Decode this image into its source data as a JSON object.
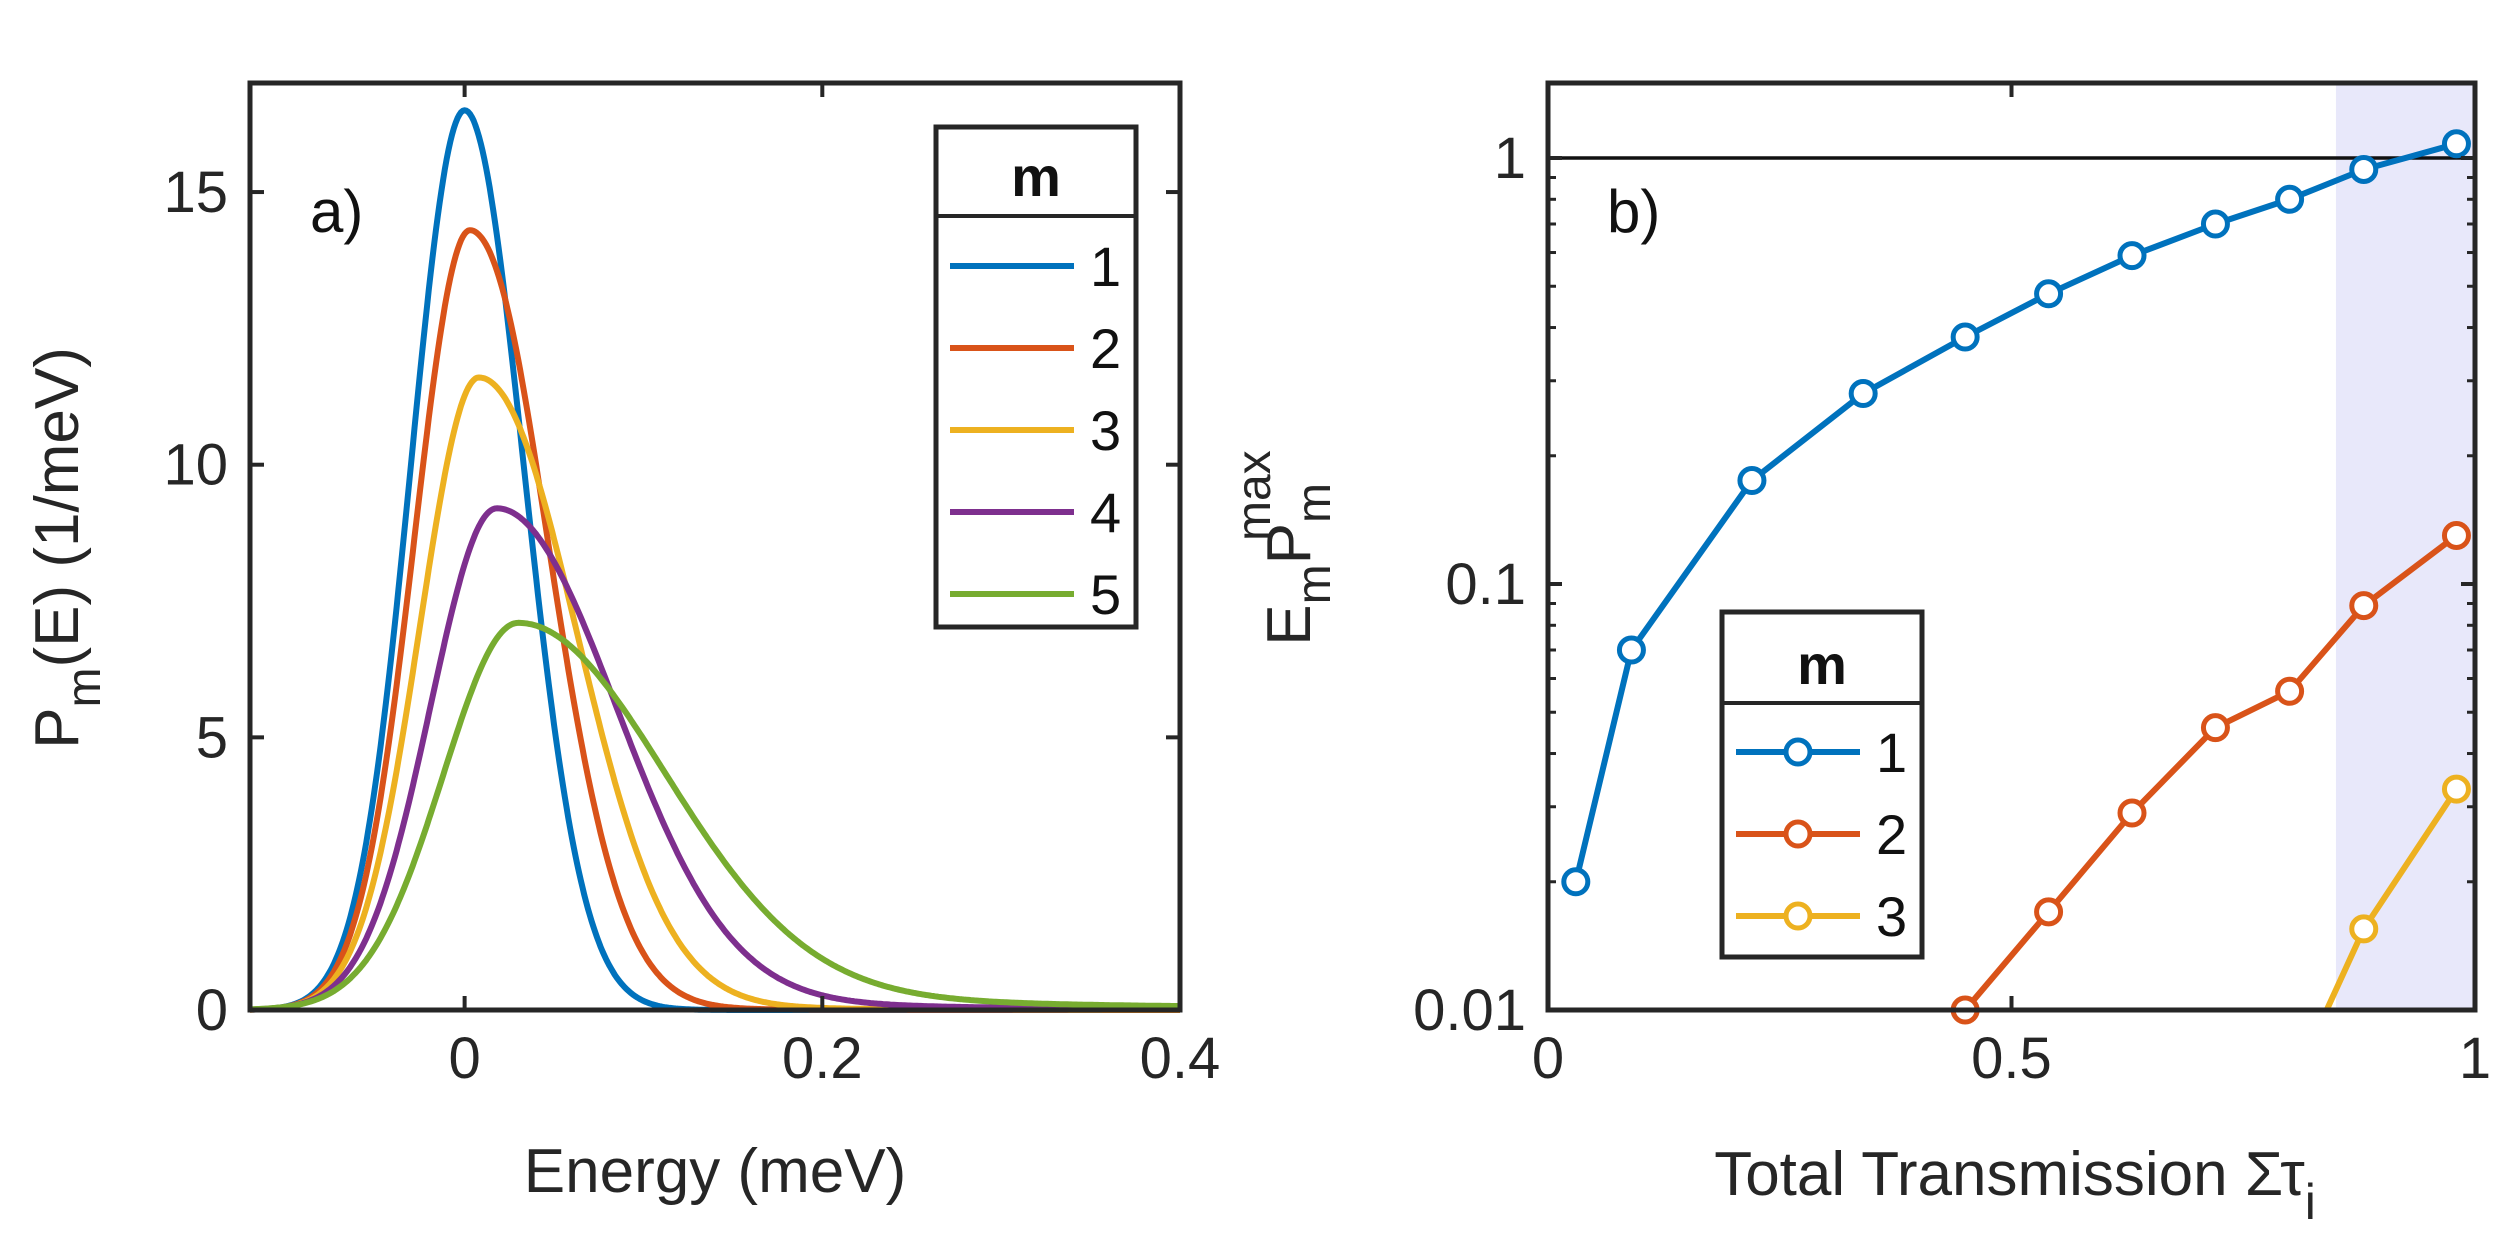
{
  "chart_data": [
    {
      "type": "line",
      "panel_label": "a)",
      "xlabel": "Energy (meV)",
      "ylabel": {
        "main": "P",
        "sub": "m",
        "rest": "(E) (1/meV)"
      },
      "xlim": [
        -0.12,
        0.4
      ],
      "ylim": [
        0,
        17
      ],
      "xticks": [
        0,
        0.2,
        0.4
      ],
      "xtick_labels": [
        "0",
        "0.2",
        "0.4"
      ],
      "yticks": [
        0,
        5,
        10,
        15
      ],
      "ytick_labels": [
        "0",
        "5",
        "10",
        "15"
      ],
      "legend": {
        "title": "m",
        "location": "top-right",
        "entries": [
          "1",
          "2",
          "3",
          "4",
          "5"
        ]
      },
      "series": [
        {
          "name": "1",
          "color": "#0072BD",
          "peak_x": 0.0,
          "peak_y": 16.5,
          "width_left": 0.03,
          "width_right": 0.033,
          "tail": 0.0,
          "tail_scale": 0.02,
          "tail_pow": 2
        },
        {
          "name": "2",
          "color": "#D95319",
          "peak_x": 0.003,
          "peak_y": 14.3,
          "width_left": 0.031,
          "width_right": 0.042,
          "tail": 0.3,
          "tail_scale": 0.035,
          "tail_pow": 3
        },
        {
          "name": "3",
          "color": "#EDB120",
          "peak_x": 0.008,
          "peak_y": 11.6,
          "width_left": 0.033,
          "width_right": 0.052,
          "tail": 0.34,
          "tail_scale": 0.05,
          "tail_pow": 2.6
        },
        {
          "name": "4",
          "color": "#7E2F8E",
          "peak_x": 0.018,
          "peak_y": 9.2,
          "width_left": 0.037,
          "width_right": 0.064,
          "tail": 0.38,
          "tail_scale": 0.08,
          "tail_pow": 2.2
        },
        {
          "name": "5",
          "color": "#77AC30",
          "peak_x": 0.03,
          "peak_y": 7.1,
          "width_left": 0.042,
          "width_right": 0.08,
          "tail": 0.42,
          "tail_scale": 0.13,
          "tail_pow": 2.0
        }
      ]
    },
    {
      "type": "line",
      "panel_label": "b)",
      "xlabel": "Total Transmission Στ",
      "xlabel_sub": "i",
      "ylabel": {
        "main": "E",
        "sub1": "m",
        "mid": "P",
        "sub2": "m",
        "sup": "max"
      },
      "xlim": [
        0,
        1
      ],
      "ylim": [
        0.01,
        1.5
      ],
      "yscale": "log",
      "xticks": [
        0,
        0.5,
        1
      ],
      "xtick_labels": [
        "0",
        "0.5",
        "1"
      ],
      "yticks": [
        0.01,
        0.1,
        1
      ],
      "ytick_labels": [
        "0.01",
        "0.1",
        "1"
      ],
      "reference_line_y": 1,
      "shaded_region_x": [
        0.85,
        1.0
      ],
      "shade_color": "#E8E8FA",
      "legend": {
        "title": "m",
        "location": "bottom-left",
        "entries": [
          "1",
          "2",
          "3"
        ]
      },
      "series": [
        {
          "name": "1",
          "color": "#0072BD",
          "x": [
            0.03,
            0.09,
            0.22,
            0.34,
            0.45,
            0.54,
            0.63,
            0.72,
            0.8,
            0.88,
            0.98
          ],
          "y": [
            0.02,
            0.07,
            0.175,
            0.28,
            0.38,
            0.48,
            0.59,
            0.7,
            0.8,
            0.94,
            1.08
          ]
        },
        {
          "name": "2",
          "color": "#D95319",
          "x": [
            0.45,
            0.54,
            0.63,
            0.72,
            0.8,
            0.88,
            0.98
          ],
          "y": [
            0.01,
            0.017,
            0.029,
            0.046,
            0.056,
            0.089,
            0.13
          ]
        },
        {
          "name": "3",
          "color": "#EDB120",
          "x": [
            0.84,
            0.88,
            0.98
          ],
          "y": [
            0.01,
            0.0155,
            0.033
          ],
          "first_point_marker": false
        }
      ]
    }
  ]
}
